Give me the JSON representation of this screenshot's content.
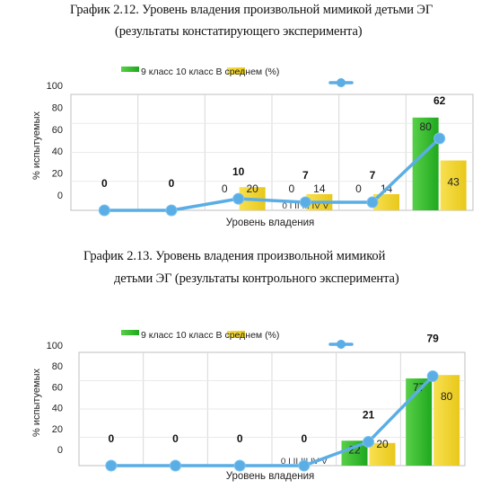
{
  "captions": {
    "c1_line1": "График 2.12. Уровень владения произвольной мимикой детьми ЭГ",
    "c1_line2": "(результаты констатирующего эксперимента)",
    "c2_line1": "График 2.13. Уровень владения произвольной мимикой",
    "c2_line2": "детьми ЭГ (результаты контрольного эксперимента)"
  },
  "colors": {
    "green": "#1FA81F",
    "yellow": "#E8C81A",
    "line": "#5AAEE5",
    "grid": "#D8D8D8",
    "frame": "#BFBFBF"
  },
  "chart_data": [
    {
      "type": "bar",
      "title": "",
      "legend": [
        "9 класс",
        "10 класс",
        "В среднем (%)"
      ],
      "legend_text": "9 класс 10 класс В среднем (%)",
      "ylabel": "% испытуемых",
      "xlabel": "Уровень владения",
      "category_labels_text": "0 I II III IV V",
      "ylim": [
        0,
        100
      ],
      "yticks": [
        "0",
        "20",
        "40",
        "60",
        "80",
        "100"
      ],
      "categories": [
        "0",
        "I",
        "II",
        "III",
        "IV",
        "V"
      ],
      "series": [
        {
          "name": "9 класс",
          "values": [
            0,
            0,
            0,
            0,
            0,
            80
          ],
          "labels": [
            "",
            "",
            "0",
            "0",
            "0",
            "80"
          ]
        },
        {
          "name": "10 класс",
          "values": [
            0,
            0,
            20,
            14,
            14,
            43
          ],
          "labels": [
            "",
            "",
            "20",
            "14",
            "14",
            "43"
          ]
        },
        {
          "name": "В среднем (%)",
          "values": [
            0,
            0,
            10,
            7,
            7,
            62
          ],
          "labels": [
            "0",
            "0",
            "10",
            "7",
            "7",
            "62"
          ]
        }
      ]
    },
    {
      "type": "bar",
      "title": "",
      "legend": [
        "9 класс",
        "10 класс",
        "В среднем (%)"
      ],
      "legend_text": "9 класс 10 класс В среднем (%)",
      "ylabel": "% испытуемых",
      "xlabel": "Уровень владения",
      "category_labels_text": "0 I II III IV V",
      "ylim": [
        0,
        100
      ],
      "yticks": [
        "0",
        "20",
        "40",
        "60",
        "80",
        "100"
      ],
      "categories": [
        "0",
        "I",
        "II",
        "III",
        "IV",
        "V"
      ],
      "series": [
        {
          "name": "9 класс",
          "values": [
            0,
            0,
            0,
            0,
            22,
            77
          ],
          "labels": [
            "",
            "",
            "",
            "",
            "22",
            "77"
          ]
        },
        {
          "name": "10 класс",
          "values": [
            0,
            0,
            0,
            0,
            20,
            80
          ],
          "labels": [
            "",
            "",
            "",
            "",
            "20",
            "80"
          ]
        },
        {
          "name": "В среднем (%)",
          "values": [
            0,
            0,
            0,
            0,
            21,
            79
          ],
          "labels": [
            "0",
            "0",
            "0",
            "0",
            "21",
            "79"
          ]
        }
      ]
    }
  ]
}
